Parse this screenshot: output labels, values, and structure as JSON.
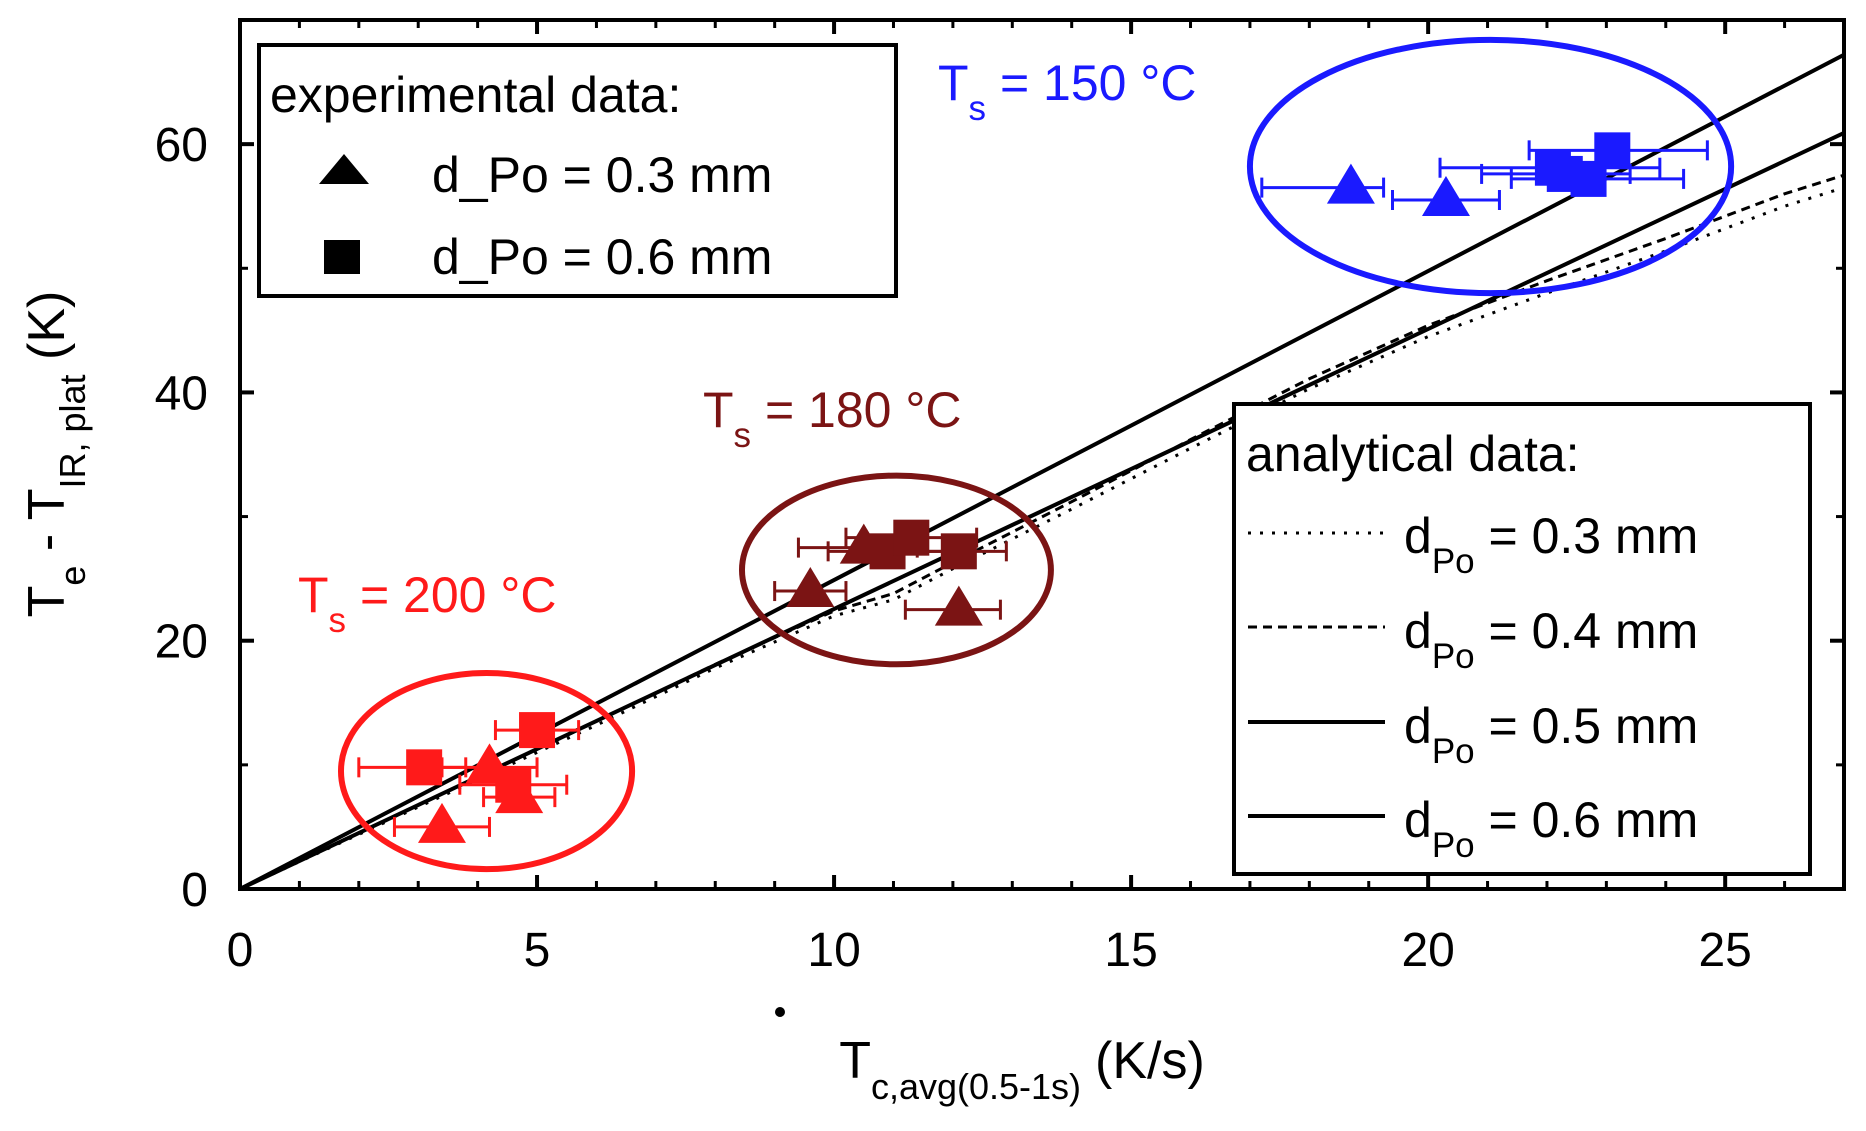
{
  "chart_data": {
    "type": "scatter",
    "xlim": [
      0,
      27
    ],
    "ylim": [
      0,
      70
    ],
    "x_ticks": [
      0,
      5,
      10,
      15,
      20,
      25
    ],
    "y_ticks": [
      0,
      20,
      40,
      60
    ],
    "x_tick_labels": [
      "0",
      "5",
      "10",
      "15",
      "20",
      "25"
    ],
    "y_tick_labels": [
      "0",
      "20",
      "40",
      "60"
    ],
    "xlabel": {
      "main": "T",
      "sub": "c,avg(0.5-1s)",
      "unit": "(K/s)"
    },
    "ylabel": {
      "t1": "T",
      "s1": "e",
      "mid": " - T",
      "s2": "IR, plat",
      "unit": " (K)"
    },
    "legend_experimental": {
      "title": "experimental data:",
      "items": [
        {
          "marker": "triangle",
          "label": "d_Po = 0.3 mm"
        },
        {
          "marker": "square",
          "label": "d_Po = 0.6 mm"
        }
      ]
    },
    "legend_analytical": {
      "title": "analytical data:",
      "items": [
        {
          "main": "d",
          "sub": "Po",
          "rest": " = 0.3 mm",
          "style": "dotted"
        },
        {
          "main": "d",
          "sub": "Po",
          "rest": " = 0.4 mm",
          "style": "dashed"
        },
        {
          "main": "d",
          "sub": "Po",
          "rest": " = 0.5 mm",
          "style": "solid"
        },
        {
          "main": "d",
          "sub": "Po",
          "rest": " = 0.6 mm",
          "style": "solid"
        }
      ]
    },
    "groups": [
      {
        "name": "Ts-150",
        "label": {
          "main": "T",
          "sub": "s",
          "rest": " = 150 °C"
        },
        "color": "#1a1aff",
        "ellipse": {
          "cx": 21.05,
          "cy": 58.2,
          "rx": 4.05,
          "ry": 10.2
        },
        "triangles": [
          {
            "x": 18.7,
            "y": 56.5,
            "xerr_lo": 1.5,
            "xerr_hi": 0.55
          },
          {
            "x": 20.3,
            "y": 55.5,
            "xerr_lo": 0.9,
            "xerr_hi": 0.9
          }
        ],
        "squares": [
          {
            "x": 22.1,
            "y": 58.1,
            "xerr_lo": 1.9,
            "xerr_hi": 1.8
          },
          {
            "x": 22.3,
            "y": 57.6,
            "xerr_lo": 1.4,
            "xerr_hi": 1.1
          },
          {
            "x": 22.7,
            "y": 57.2,
            "xerr_lo": 1.3,
            "xerr_hi": 1.6
          },
          {
            "x": 23.1,
            "y": 59.5,
            "xerr_lo": 1.4,
            "xerr_hi": 1.6
          }
        ]
      },
      {
        "name": "Ts-180",
        "label": {
          "main": "T",
          "sub": "s",
          "rest": " = 180 °C"
        },
        "color": "#7b1414",
        "ellipse": {
          "cx": 11.05,
          "cy": 25.7,
          "rx": 2.6,
          "ry": 7.6
        },
        "triangles": [
          {
            "x": 9.6,
            "y": 24.0,
            "xerr_lo": 0.6,
            "xerr_hi": 0.6
          },
          {
            "x": 10.5,
            "y": 27.5,
            "xerr_lo": 1.1,
            "xerr_hi": 0.9
          },
          {
            "x": 12.1,
            "y": 22.5,
            "xerr_lo": 0.9,
            "xerr_hi": 0.7
          }
        ],
        "squares": [
          {
            "x": 10.9,
            "y": 27.2,
            "xerr_lo": 1.0,
            "xerr_hi": 1.0
          },
          {
            "x": 11.3,
            "y": 28.3,
            "xerr_lo": 1.1,
            "xerr_hi": 1.1
          },
          {
            "x": 12.1,
            "y": 27.2,
            "xerr_lo": 1.2,
            "xerr_hi": 0.8
          }
        ]
      },
      {
        "name": "Ts-200",
        "label": {
          "main": "T",
          "sub": "s",
          "rest": " = 200 °C"
        },
        "color": "#ff1a1a",
        "ellipse": {
          "cx": 4.15,
          "cy": 9.5,
          "rx": 2.45,
          "ry": 7.9
        },
        "triangles": [
          {
            "x": 3.4,
            "y": 5.0,
            "xerr_lo": 0.8,
            "xerr_hi": 0.8
          },
          {
            "x": 4.2,
            "y": 9.8,
            "xerr_lo": 0.8,
            "xerr_hi": 0.8
          },
          {
            "x": 4.7,
            "y": 7.4,
            "xerr_lo": 0.6,
            "xerr_hi": 0.6
          }
        ],
        "squares": [
          {
            "x": 3.1,
            "y": 9.8,
            "xerr_lo": 1.1,
            "xerr_hi": 0.7
          },
          {
            "x": 4.6,
            "y": 8.4,
            "xerr_lo": 0.9,
            "xerr_hi": 0.9
          },
          {
            "x": 5.0,
            "y": 12.8,
            "xerr_lo": 0.7,
            "xerr_hi": 0.7
          }
        ]
      }
    ],
    "lines": [
      {
        "name": "d_Po 0.3 mm",
        "style": "dotted",
        "x": [
          0,
          2,
          4,
          6,
          8,
          10,
          11,
          12,
          14,
          16,
          18,
          20,
          22,
          24,
          26,
          27
        ],
        "y": [
          0,
          4.4,
          8.8,
          13.2,
          17.8,
          22.0,
          23.3,
          25.8,
          30.6,
          35.5,
          40.3,
          44.5,
          48.0,
          51.4,
          55.0,
          56.5
        ]
      },
      {
        "name": "d_Po 0.4 mm",
        "style": "dashed",
        "x": [
          0,
          2,
          4,
          6,
          8,
          10,
          11,
          12,
          14,
          16,
          18,
          20,
          22,
          24,
          26,
          27
        ],
        "y": [
          0,
          4.5,
          9.0,
          13.5,
          18.1,
          22.4,
          23.8,
          26.3,
          31.2,
          36.2,
          41.1,
          45.4,
          49.0,
          52.4,
          56.0,
          57.5
        ]
      },
      {
        "name": "d_Po 0.5 mm",
        "style": "solid",
        "x": [
          0,
          27
        ],
        "y": [
          0,
          67.2
        ]
      },
      {
        "name": "d_Po 0.6 mm",
        "style": "solid",
        "x": [
          0,
          27
        ],
        "y": [
          0,
          60.9
        ]
      }
    ]
  }
}
